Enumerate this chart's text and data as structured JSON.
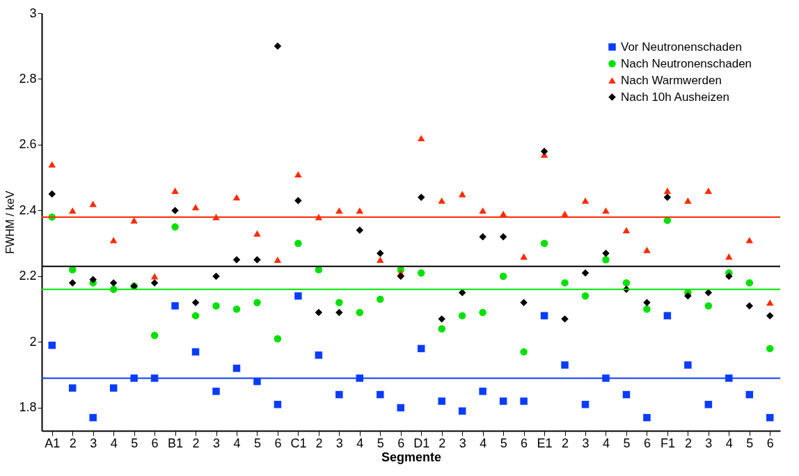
{
  "chart_data": {
    "type": "scatter",
    "xlabel": "Segmente",
    "ylabel": "FWHM / keV",
    "categories": [
      "A1",
      "2",
      "3",
      "4",
      "5",
      "6",
      "B1",
      "2",
      "3",
      "4",
      "5",
      "6",
      "C1",
      "2",
      "3",
      "4",
      "5",
      "6",
      "D1",
      "2",
      "3",
      "4",
      "5",
      "6",
      "E1",
      "2",
      "3",
      "4",
      "5",
      "6",
      "F1",
      "2",
      "3",
      "4",
      "5",
      "6"
    ],
    "series": [
      {
        "name": "Vor Neutronenschaden",
        "color": "#0a3cff",
        "marker": "square",
        "values": [
          1.99,
          1.86,
          1.77,
          1.86,
          1.89,
          1.89,
          2.11,
          1.97,
          1.85,
          1.92,
          1.88,
          1.81,
          2.14,
          1.96,
          1.84,
          1.89,
          1.84,
          1.8,
          1.98,
          1.82,
          1.79,
          1.85,
          1.82,
          1.82,
          2.08,
          1.93,
          1.81,
          1.89,
          1.84,
          1.77,
          2.08,
          1.93,
          1.81,
          1.89,
          1.84,
          1.77
        ]
      },
      {
        "name": "Nach Neutronenschaden",
        "color": "#00e000",
        "marker": "circle",
        "values": [
          2.38,
          2.22,
          2.18,
          2.16,
          2.17,
          2.02,
          2.35,
          2.08,
          2.11,
          2.1,
          2.12,
          2.01,
          2.3,
          2.22,
          2.12,
          2.09,
          2.13,
          2.22,
          2.21,
          2.04,
          2.08,
          2.09,
          2.2,
          1.97,
          2.3,
          2.18,
          2.14,
          2.25,
          2.18,
          2.1,
          2.37,
          2.15,
          2.11,
          2.21,
          2.18,
          1.98
        ]
      },
      {
        "name": "Nach Warmwerden",
        "color": "#ff2a00",
        "marker": "triangle",
        "values": [
          2.54,
          2.4,
          2.42,
          2.31,
          2.37,
          2.2,
          2.46,
          2.41,
          2.38,
          2.44,
          2.33,
          2.25,
          2.51,
          2.38,
          2.4,
          2.4,
          2.25,
          2.21,
          2.62,
          2.43,
          2.45,
          2.4,
          2.39,
          2.26,
          2.57,
          2.39,
          2.43,
          2.4,
          2.34,
          2.28,
          2.46,
          2.43,
          2.46,
          2.26,
          2.31,
          2.12
        ]
      },
      {
        "name": "Nach 10h Ausheizen",
        "color": "#000000",
        "marker": "diamond",
        "values": [
          2.45,
          2.18,
          2.19,
          2.18,
          2.17,
          2.18,
          2.4,
          2.12,
          2.2,
          2.25,
          2.25,
          2.9,
          2.43,
          2.09,
          2.09,
          2.34,
          2.27,
          2.2,
          2.44,
          2.07,
          2.15,
          2.32,
          2.32,
          2.12,
          2.58,
          2.07,
          2.21,
          2.27,
          2.16,
          2.12,
          2.44,
          2.14,
          2.15,
          2.2,
          2.11,
          2.08
        ]
      }
    ],
    "ylim": [
      1.73,
      3
    ],
    "yticks": [
      1.8,
      2,
      2.2,
      2.4,
      2.6,
      2.8,
      3
    ],
    "ref_lines": [
      {
        "axis": "y",
        "value": 2.38,
        "color": "#ff2a00"
      },
      {
        "axis": "y",
        "value": 2.23,
        "color": "#000000"
      },
      {
        "axis": "y",
        "value": 2.16,
        "color": "#00e000"
      },
      {
        "axis": "y",
        "value": 1.89,
        "color": "#0a3cff"
      }
    ],
    "grid": false,
    "legend": "top right"
  }
}
